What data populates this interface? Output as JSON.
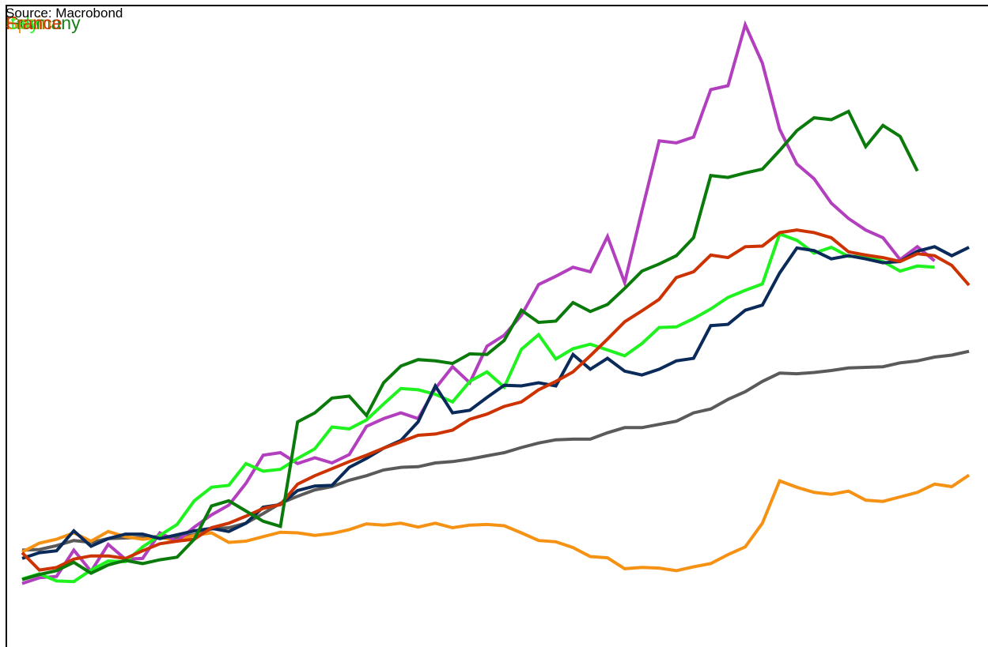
{
  "source_note": "Source: Macrobond",
  "chart_data": {
    "type": "line",
    "title": "",
    "xlabel": "",
    "ylabel": "",
    "xlim": [
      1,
      56
    ],
    "ylim": [
      0,
      100
    ],
    "grid": false,
    "legend": {
      "placement": "top-left",
      "overlapping": true
    },
    "series": [
      {
        "name": "Germany",
        "color": "#0a7a0a",
        "x": [
          1,
          2,
          3,
          4,
          5,
          6,
          7,
          8,
          9,
          10,
          11,
          12,
          13,
          14,
          15,
          16,
          17,
          18,
          19,
          20,
          21,
          22,
          23,
          24,
          25,
          26,
          27,
          28,
          29,
          30,
          31,
          32,
          33,
          34,
          35,
          36,
          37,
          38,
          39,
          40,
          41,
          42,
          43,
          44,
          45,
          46,
          47,
          48,
          49,
          50,
          51,
          52,
          53,
          54
        ],
        "values": [
          10.5,
          11.3,
          11.9,
          13.2,
          11.5,
          12.8,
          13.5,
          13.0,
          13.6,
          14.0,
          16.8,
          22.0,
          22.8,
          21.2,
          19.6,
          18.8,
          35.1,
          36.5,
          38.8,
          39.1,
          36.1,
          41.2,
          43.8,
          44.8,
          44.6,
          44.2,
          45.7,
          45.6,
          47.8,
          52.5,
          50.6,
          50.8,
          53.7,
          52.3,
          53.4,
          55.9,
          58.6,
          59.7,
          61.0,
          63.8,
          73.5,
          73.2,
          73.9,
          74.5,
          77.4,
          80.5,
          82.5,
          82.2,
          83.5,
          78.0,
          81.3,
          79.6,
          74.2,
          null
        ]
      },
      {
        "name": "Spain",
        "color": "#f59214",
        "x": [
          1,
          2,
          3,
          4,
          5,
          6,
          7,
          8,
          9,
          10,
          11,
          12,
          13,
          14,
          15,
          16,
          17,
          18,
          19,
          20,
          21,
          22,
          23,
          24,
          25,
          26,
          27,
          28,
          29,
          30,
          31,
          32,
          33,
          34,
          35,
          36,
          37,
          38,
          39,
          40,
          41,
          42,
          43,
          44,
          45,
          46,
          47,
          48,
          49,
          50,
          51,
          52,
          53,
          54,
          55,
          56
        ],
        "values": [
          14.8,
          16.2,
          16.8,
          17.8,
          16.5,
          18.0,
          17.2,
          16.8,
          17.1,
          16.6,
          17.4,
          17.8,
          16.3,
          16.5,
          17.2,
          17.9,
          17.8,
          17.4,
          17.7,
          18.3,
          19.2,
          19.0,
          19.3,
          18.7,
          19.3,
          18.6,
          19.0,
          19.1,
          18.9,
          17.8,
          16.6,
          16.4,
          15.5,
          14.1,
          13.9,
          12.2,
          12.4,
          12.3,
          11.9,
          12.5,
          13.0,
          14.4,
          15.6,
          19.3,
          25.9,
          24.9,
          24.1,
          23.8,
          24.3,
          22.9,
          22.7,
          23.4,
          24.1,
          25.4,
          25.0,
          26.8
        ]
      },
      {
        "name": "Italy",
        "color": "#1ff21f",
        "x": [
          1,
          2,
          3,
          4,
          5,
          6,
          7,
          8,
          9,
          10,
          11,
          12,
          13,
          14,
          15,
          16,
          17,
          18,
          19,
          20,
          21,
          22,
          23,
          24,
          25,
          26,
          27,
          28,
          29,
          30,
          31,
          32,
          33,
          34,
          35,
          36,
          37,
          38,
          39,
          40,
          41,
          42,
          43,
          44,
          45,
          46,
          47,
          48,
          49,
          50,
          51,
          52,
          53,
          54
        ],
        "values": [
          10.6,
          11.4,
          10.3,
          10.2,
          12.0,
          13.4,
          13.3,
          15.6,
          17.4,
          19.1,
          22.8,
          24.9,
          25.2,
          28.6,
          27.4,
          27.7,
          29.4,
          30.9,
          34.3,
          34.0,
          35.4,
          37.9,
          40.3,
          40.1,
          39.4,
          38.2,
          41.4,
          42.9,
          40.5,
          46.4,
          48.7,
          44.9,
          46.5,
          47.2,
          46.3,
          45.4,
          47.3,
          49.8,
          49.9,
          51.2,
          52.7,
          54.5,
          55.6,
          56.6,
          64.4,
          63.4,
          61.4,
          62.3,
          60.9,
          60.9,
          60.1,
          58.6,
          59.4,
          59.2
        ]
      },
      {
        "name": "France",
        "color": "#cc3300",
        "x": [
          1,
          2,
          3,
          4,
          5,
          6,
          7,
          8,
          9,
          10,
          11,
          12,
          13,
          14,
          15,
          16,
          17,
          18,
          19,
          20,
          21,
          22,
          23,
          24,
          25,
          26,
          27,
          28,
          29,
          30,
          31,
          32,
          33,
          34,
          35,
          36,
          37,
          38,
          39,
          40,
          41,
          42,
          43,
          44,
          45,
          46,
          47,
          48,
          49,
          50,
          51,
          52,
          53,
          54,
          55,
          56
        ],
        "values": [
          14.7,
          12.0,
          12.4,
          13.7,
          14.2,
          14.2,
          13.8,
          15.0,
          16.1,
          16.5,
          16.8,
          18.6,
          19.3,
          20.4,
          21.6,
          22.2,
          25.4,
          26.7,
          27.8,
          28.9,
          29.9,
          31.0,
          32.0,
          33.0,
          33.2,
          33.8,
          35.5,
          36.3,
          37.5,
          38.2,
          40.1,
          41.4,
          42.9,
          45.4,
          48.0,
          50.7,
          52.4,
          54.2,
          57.6,
          58.5,
          61.1,
          60.7,
          62.4,
          62.5,
          64.6,
          65.0,
          64.6,
          63.8,
          61.6,
          61.1,
          60.7,
          60.1,
          61.3,
          61.0,
          59.5,
          56.4
        ]
      },
      {
        "name": "",
        "color": "#b23fbe",
        "x": [
          1,
          2,
          3,
          4,
          5,
          6,
          7,
          8,
          9,
          10,
          11,
          12,
          13,
          14,
          15,
          16,
          17,
          18,
          19,
          20,
          21,
          22,
          23,
          24,
          25,
          26,
          27,
          28,
          29,
          30,
          31,
          32,
          33,
          34,
          35,
          36,
          37,
          38,
          39,
          40,
          41,
          42,
          43,
          44,
          45,
          46,
          47,
          48,
          49,
          50,
          51,
          52,
          53,
          54
        ],
        "values": [
          9.9,
          10.8,
          11.0,
          15.1,
          11.8,
          16.0,
          13.7,
          13.8,
          17.8,
          16.5,
          18.7,
          20.6,
          22.1,
          25.5,
          29.9,
          30.3,
          28.6,
          29.5,
          28.7,
          30.0,
          34.4,
          35.6,
          36.5,
          35.6,
          40.3,
          43.7,
          41.2,
          46.9,
          48.6,
          51.7,
          56.5,
          57.8,
          59.2,
          58.5,
          64.0,
          56.8,
          68.0,
          78.9,
          78.6,
          79.5,
          86.9,
          87.5,
          97.0,
          91.0,
          80.7,
          75.3,
          73.0,
          69.2,
          66.8,
          65.0,
          63.8,
          60.4,
          62.4,
          60.2
        ]
      },
      {
        "name": "",
        "color": "#0a2a5a",
        "x": [
          1,
          2,
          3,
          4,
          5,
          6,
          7,
          8,
          9,
          10,
          11,
          12,
          13,
          14,
          15,
          16,
          17,
          18,
          19,
          20,
          21,
          22,
          23,
          24,
          25,
          26,
          27,
          28,
          29,
          30,
          31,
          32,
          33,
          34,
          35,
          36,
          37,
          38,
          39,
          40,
          41,
          42,
          43,
          44,
          45,
          46,
          47,
          48,
          49,
          50,
          51,
          52,
          53,
          54,
          55,
          56
        ],
        "values": [
          13.8,
          14.7,
          15.0,
          18.1,
          15.7,
          16.9,
          17.6,
          17.6,
          16.9,
          17.5,
          18.1,
          18.5,
          18.0,
          19.3,
          21.8,
          22.2,
          24.4,
          25.1,
          25.2,
          28.0,
          29.4,
          31.0,
          32.2,
          35.1,
          40.7,
          36.5,
          36.9,
          38.9,
          40.8,
          40.7,
          41.2,
          40.7,
          45.6,
          43.3,
          45.0,
          43.0,
          42.4,
          43.3,
          44.6,
          45.0,
          50.1,
          50.3,
          52.5,
          53.3,
          58.3,
          62.2,
          61.8,
          60.5,
          61.0,
          60.5,
          59.9,
          60.1,
          61.7,
          62.4,
          61.0,
          62.3
        ]
      },
      {
        "name": "",
        "color": "#5a5a5a",
        "x": [
          1,
          2,
          3,
          4,
          5,
          6,
          7,
          8,
          9,
          10,
          11,
          12,
          13,
          14,
          15,
          16,
          17,
          18,
          19,
          20,
          21,
          22,
          23,
          24,
          25,
          26,
          27,
          28,
          29,
          30,
          31,
          32,
          33,
          34,
          35,
          36,
          37,
          38,
          39,
          40,
          41,
          42,
          43,
          44,
          45,
          46,
          47,
          48,
          49,
          50,
          51,
          52,
          53,
          54,
          55,
          56
        ],
        "values": [
          15.1,
          15.2,
          15.8,
          16.6,
          16.3,
          16.9,
          17.0,
          17.1,
          17.2,
          17.1,
          17.5,
          18.4,
          18.6,
          19.3,
          20.8,
          22.4,
          23.5,
          24.5,
          25.0,
          26.0,
          26.7,
          27.6,
          28.0,
          28.1,
          28.7,
          28.9,
          29.3,
          29.8,
          30.3,
          31.1,
          31.8,
          32.3,
          32.4,
          32.4,
          33.4,
          34.2,
          34.2,
          34.7,
          35.2,
          36.5,
          37.1,
          38.6,
          39.8,
          41.4,
          42.7,
          42.6,
          42.8,
          43.1,
          43.5,
          43.6,
          43.7,
          44.3,
          44.6,
          45.2,
          45.5,
          46.1
        ]
      }
    ]
  }
}
